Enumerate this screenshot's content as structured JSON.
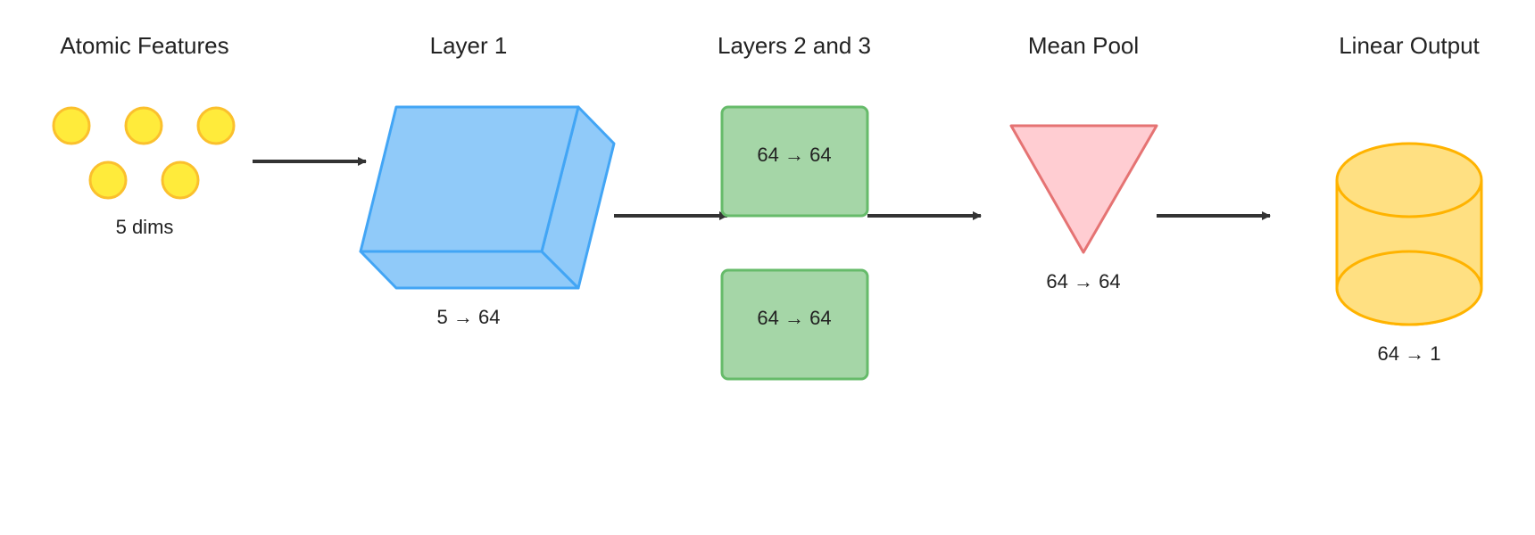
{
  "stages": [
    {
      "title": "Atomic Features",
      "label": "5 dims"
    },
    {
      "title": "Layer 1",
      "label": "5 → 64"
    },
    {
      "title": "Layers 2 and 3",
      "labels": [
        "64 → 64",
        "64 → 64"
      ]
    },
    {
      "title": "Mean Pool",
      "label": "64 → 64"
    },
    {
      "title": "Linear Output",
      "label": "64 → 1"
    }
  ],
  "colors": {
    "node_fill": "#FFEB3B",
    "node_stroke": "#FBC02D",
    "layer1_fill": "#90CAF9",
    "layer1_stroke": "#42A5F5",
    "box_fill": "#A5D6A7",
    "box_stroke": "#66BB6A",
    "pool_fill": "#FFCDD2",
    "pool_stroke": "#E57373",
    "output_fill": "#FFE082",
    "output_stroke": "#FFB300",
    "arrow": "#333333"
  },
  "icons": [
    "feature-node-icon",
    "cuboid-icon",
    "inverted-triangle-icon",
    "cylinder-icon",
    "arrow-right-icon"
  ]
}
